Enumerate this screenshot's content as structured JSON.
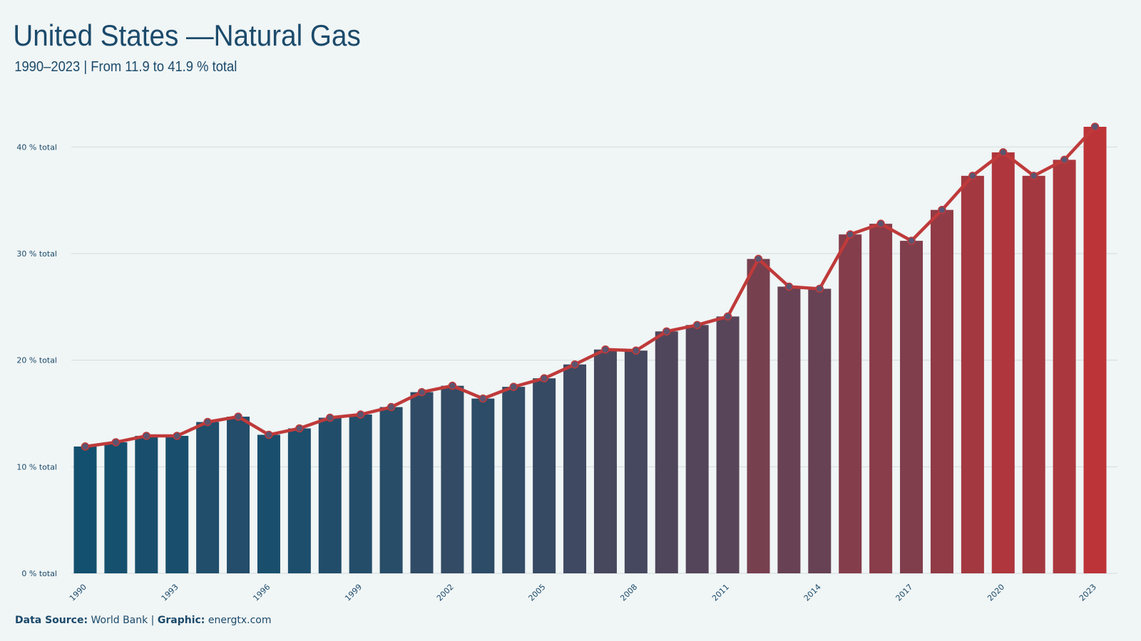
{
  "chart_data": {
    "type": "bar_line",
    "title": "United States —Natural Gas",
    "subtitle": "1990–2023 | From 11.9 to 41.9 % total",
    "categories": [
      "1990",
      null,
      null,
      "1993",
      null,
      null,
      "1996",
      null,
      null,
      "1999",
      null,
      null,
      "2002",
      null,
      null,
      "2005",
      null,
      null,
      "2008",
      null,
      null,
      "2011",
      null,
      null,
      "2014",
      null,
      null,
      "2017",
      null,
      null,
      "2020",
      null,
      null,
      "2023"
    ],
    "values": [
      11.9,
      12.3,
      12.9,
      12.9,
      14.2,
      14.7,
      13.0,
      13.6,
      14.6,
      14.9,
      15.6,
      17.0,
      17.6,
      16.4,
      17.5,
      18.3,
      19.6,
      21.0,
      20.9,
      22.7,
      23.3,
      24.1,
      29.5,
      26.9,
      26.7,
      31.8,
      32.8,
      31.2,
      34.1,
      37.3,
      39.5,
      37.3,
      38.8,
      41.9
    ],
    "bar_color_low": "#13506f",
    "bar_color_high": "#bd3438",
    "line_color": "#bf3a3a",
    "marker_color": "#5c5470",
    "ylim": [
      0,
      41.9
    ],
    "yticks": [
      {
        "value": 0,
        "label": "0 % total"
      },
      {
        "value": 10,
        "label": "10 % total"
      },
      {
        "value": 20,
        "label": "20 % total"
      },
      {
        "value": 30,
        "label": "30 % total"
      },
      {
        "value": 40,
        "label": "40 % total"
      }
    ],
    "grid": true,
    "source_label": "Data Source:",
    "source": "World Bank |",
    "graphic_label": "Graphic:",
    "graphic": "energtx.com"
  }
}
